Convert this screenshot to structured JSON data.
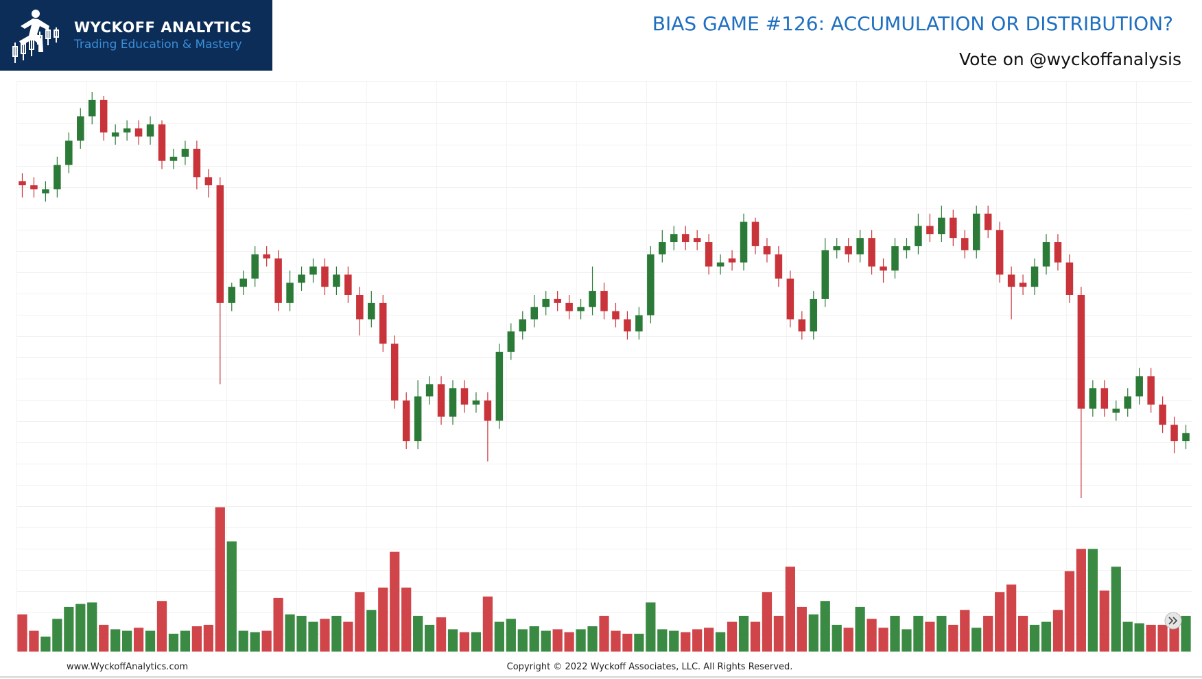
{
  "header": {
    "brand": "WYCKOFF ANALYTICS",
    "tagline": "Trading Education & Mastery",
    "title": "BIAS GAME #126: ACCUMULATION OR DISTRIBUTION?",
    "subtitle": "Vote on @wyckoffanalysis"
  },
  "chart_data": {
    "type": "candlestick",
    "ylim": [
      0,
      100
    ],
    "up_color": "#2b7a37",
    "down_color": "#c9343b",
    "open": [
      78,
      77,
      75,
      76,
      82,
      88,
      94,
      98,
      89,
      90,
      91,
      89,
      92,
      83,
      84,
      86,
      79,
      77,
      48,
      52,
      54,
      60,
      59,
      48,
      53,
      55,
      57,
      52,
      55,
      50,
      44,
      48,
      38,
      24,
      14,
      25,
      28,
      20,
      27,
      23,
      24,
      19,
      36,
      41,
      44,
      47,
      49,
      48,
      46,
      47,
      51,
      46,
      44,
      41,
      45,
      60,
      63,
      65,
      64,
      63,
      57,
      59,
      58,
      68,
      62,
      60,
      54,
      44,
      41,
      49,
      61,
      62,
      60,
      64,
      57,
      56,
      61,
      62,
      67,
      65,
      69,
      64,
      61,
      70,
      66,
      55,
      53,
      52,
      57,
      63,
      58,
      50,
      22,
      27,
      21,
      22,
      25,
      30,
      23,
      18,
      14
    ],
    "high": [
      80,
      79,
      78,
      84,
      90,
      96,
      100,
      99,
      92,
      93,
      93,
      94,
      93,
      86,
      88,
      88,
      81,
      79,
      53,
      56,
      62,
      62,
      61,
      56,
      57,
      59,
      59,
      57,
      57,
      52,
      51,
      50,
      40,
      26,
      29,
      30,
      30,
      29,
      29,
      26,
      26,
      38,
      43,
      46,
      50,
      51,
      51,
      50,
      49,
      57,
      53,
      48,
      46,
      47,
      62,
      66,
      67,
      67,
      66,
      65,
      60,
      61,
      70,
      69,
      64,
      62,
      56,
      46,
      51,
      64,
      64,
      64,
      66,
      66,
      59,
      64,
      64,
      70,
      70,
      72,
      71,
      66,
      72,
      72,
      68,
      57,
      55,
      59,
      65,
      65,
      60,
      52,
      29,
      29,
      24,
      27,
      32,
      32,
      25,
      20,
      18
    ],
    "low": [
      74,
      74,
      73,
      74,
      80,
      86,
      92,
      88,
      87,
      88,
      87,
      87,
      81,
      81,
      82,
      76,
      74,
      28,
      46,
      50,
      52,
      57,
      46,
      46,
      51,
      53,
      50,
      50,
      48,
      40,
      42,
      36,
      22,
      12,
      12,
      23,
      18,
      18,
      21,
      21,
      9,
      17,
      34,
      39,
      42,
      45,
      46,
      44,
      44,
      45,
      44,
      42,
      39,
      39,
      43,
      58,
      61,
      61,
      61,
      55,
      55,
      56,
      56,
      60,
      58,
      52,
      42,
      39,
      39,
      47,
      59,
      58,
      58,
      55,
      53,
      54,
      59,
      60,
      63,
      63,
      62,
      59,
      59,
      64,
      53,
      44,
      50,
      50,
      55,
      56,
      48,
      0,
      20,
      20,
      19,
      20,
      23,
      21,
      16,
      11,
      12
    ],
    "close": [
      77,
      76,
      76,
      82,
      88,
      94,
      98,
      90,
      90,
      91,
      89,
      92,
      83,
      84,
      86,
      79,
      77,
      48,
      52,
      54,
      60,
      59,
      48,
      53,
      55,
      57,
      52,
      55,
      50,
      44,
      48,
      38,
      24,
      14,
      25,
      28,
      20,
      27,
      23,
      24,
      19,
      36,
      41,
      44,
      47,
      49,
      48,
      46,
      47,
      51,
      46,
      44,
      41,
      45,
      60,
      63,
      65,
      63,
      63,
      57,
      58,
      58,
      68,
      62,
      60,
      54,
      44,
      41,
      49,
      61,
      62,
      60,
      64,
      57,
      56,
      62,
      62,
      67,
      65,
      69,
      64,
      61,
      70,
      66,
      55,
      52,
      52,
      57,
      63,
      58,
      50,
      22,
      27,
      22,
      22,
      25,
      30,
      23,
      18,
      14,
      16
    ],
    "volume": {
      "ylim": [
        0,
        100
      ],
      "up_color": "#3b8a44",
      "down_color": "#d0454a",
      "values": [
        25,
        14,
        10,
        22,
        30,
        32,
        33,
        18,
        15,
        14,
        16,
        14,
        34,
        12,
        14,
        17,
        18,
        97,
        74,
        14,
        13,
        14,
        36,
        25,
        24,
        20,
        22,
        24,
        20,
        40,
        28,
        43,
        67,
        43,
        24,
        18,
        23,
        15,
        13,
        13,
        37,
        20,
        22,
        15,
        17,
        14,
        15,
        13,
        15,
        17,
        24,
        14,
        12,
        12,
        33,
        15,
        14,
        13,
        15,
        16,
        13,
        20,
        24,
        20,
        40,
        24,
        57,
        30,
        25,
        34,
        18,
        16,
        30,
        22,
        16,
        24,
        15,
        24,
        20,
        24,
        18,
        28,
        16,
        24,
        40,
        45,
        24,
        18,
        20,
        28,
        54,
        69,
        69,
        41,
        57,
        20,
        19,
        18,
        18,
        23,
        24
      ]
    }
  },
  "footer": {
    "website": "www.WyckoffAnalytics.com",
    "copyright": "Copyright © 2022 Wyckoff Associates, LLC. All Rights Reserved."
  }
}
